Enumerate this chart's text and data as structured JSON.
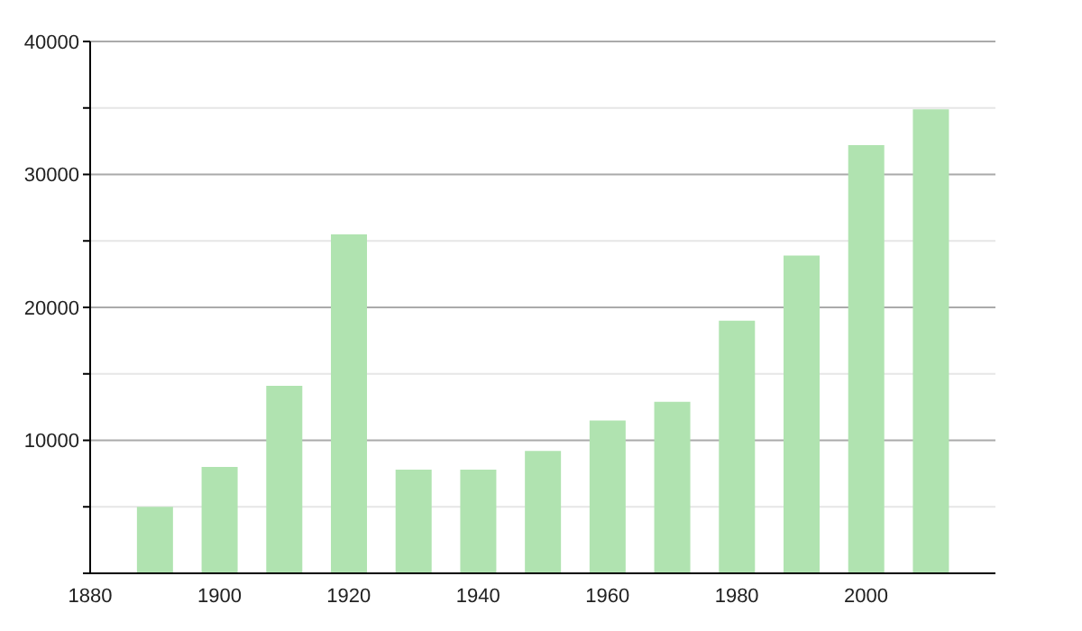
{
  "chart_data": {
    "type": "bar",
    "x": [
      1890,
      1900,
      1910,
      1920,
      1930,
      1940,
      1950,
      1960,
      1970,
      1980,
      1990,
      2000,
      2010
    ],
    "values": [
      5000,
      8000,
      14100,
      25500,
      7800,
      7800,
      9200,
      11500,
      12900,
      19000,
      23900,
      32200,
      34900
    ],
    "color": "#b0e3b0",
    "xlim": [
      1880,
      2020
    ],
    "xticks": [
      1880,
      1900,
      1920,
      1940,
      1960,
      1980,
      2000
    ],
    "ylim": [
      0,
      40000
    ],
    "yticks": [
      {
        "value": 0,
        "label": null
      },
      {
        "value": 5000,
        "label": null
      },
      10000,
      {
        "value": 15000,
        "label": null
      },
      20000,
      {
        "value": 25000,
        "label": null
      },
      30000,
      {
        "value": 35000,
        "label": null
      },
      40000
    ],
    "grid": "y"
  }
}
